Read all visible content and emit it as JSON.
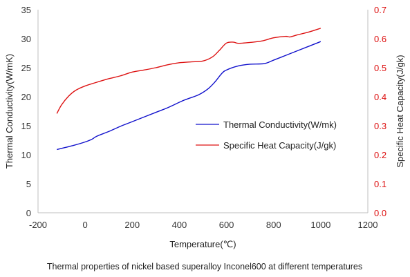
{
  "chart_data": {
    "type": "line",
    "title": "",
    "caption": "Thermal properties of nickel based superalloy Inconel600 at different temperatures",
    "xlabel": "Temperature(℃)",
    "ylabel_left": "Thermal Conductivity(W/mK)",
    "ylabel_right": "Specific Heat Capacity(J/gk)",
    "xlim": [
      -200,
      1200
    ],
    "ylim_left": [
      0,
      35
    ],
    "ylim_right": [
      0.0,
      0.7
    ],
    "x_ticks": [
      "-200",
      "0",
      "200",
      "400",
      "600",
      "800",
      "1000",
      "1200"
    ],
    "y_left_ticks": [
      "0",
      "5",
      "10",
      "15",
      "20",
      "25",
      "30",
      "35"
    ],
    "y_right_ticks": [
      "0.0",
      "0.1",
      "0.2",
      "0.3",
      "0.4",
      "0.5",
      "0.6",
      "0.7"
    ],
    "grid": false,
    "legend_position": "center-right",
    "series": [
      {
        "name": "Thermal Conductivity(W/mk)",
        "axis": "left",
        "color": "#1010cc",
        "points": [
          [
            -120,
            10.9
          ],
          [
            -50,
            11.6
          ],
          [
            0,
            12.2
          ],
          [
            30,
            12.7
          ],
          [
            50,
            13.2
          ],
          [
            100,
            14.0
          ],
          [
            150,
            14.9
          ],
          [
            200,
            15.7
          ],
          [
            300,
            17.3
          ],
          [
            350,
            18.1
          ],
          [
            420,
            19.4
          ],
          [
            480,
            20.3
          ],
          [
            520,
            21.3
          ],
          [
            550,
            22.5
          ],
          [
            580,
            24.0
          ],
          [
            600,
            24.6
          ],
          [
            650,
            25.3
          ],
          [
            700,
            25.6
          ],
          [
            760,
            25.7
          ],
          [
            800,
            26.3
          ],
          [
            850,
            27.1
          ],
          [
            900,
            27.9
          ],
          [
            950,
            28.7
          ],
          [
            1000,
            29.5
          ]
        ]
      },
      {
        "name": "Specific Heat Capacity(J/gk)",
        "axis": "right",
        "color": "#dd1111",
        "points": [
          [
            -120,
            0.342
          ],
          [
            -100,
            0.372
          ],
          [
            -70,
            0.402
          ],
          [
            -40,
            0.422
          ],
          [
            0,
            0.437
          ],
          [
            50,
            0.45
          ],
          [
            100,
            0.462
          ],
          [
            150,
            0.472
          ],
          [
            200,
            0.485
          ],
          [
            250,
            0.492
          ],
          [
            300,
            0.5
          ],
          [
            350,
            0.51
          ],
          [
            400,
            0.517
          ],
          [
            450,
            0.52
          ],
          [
            500,
            0.523
          ],
          [
            540,
            0.537
          ],
          [
            570,
            0.56
          ],
          [
            600,
            0.585
          ],
          [
            630,
            0.588
          ],
          [
            650,
            0.584
          ],
          [
            700,
            0.587
          ],
          [
            750,
            0.592
          ],
          [
            800,
            0.603
          ],
          [
            850,
            0.608
          ],
          [
            870,
            0.606
          ],
          [
            900,
            0.613
          ],
          [
            950,
            0.623
          ],
          [
            1000,
            0.636
          ]
        ]
      }
    ]
  }
}
